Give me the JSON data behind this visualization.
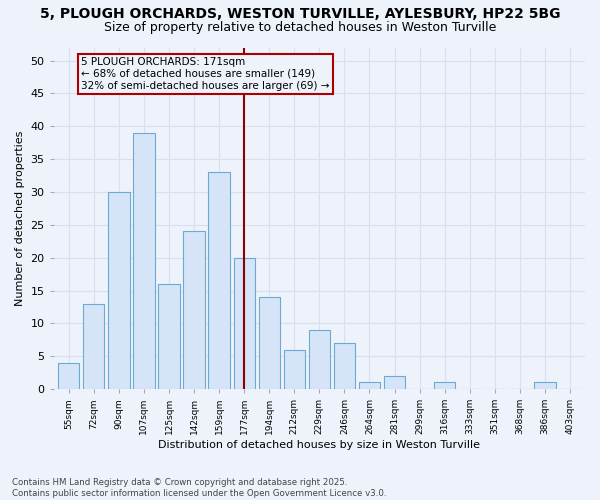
{
  "title1": "5, PLOUGH ORCHARDS, WESTON TURVILLE, AYLESBURY, HP22 5BG",
  "title2": "Size of property relative to detached houses in Weston Turville",
  "xlabel": "Distribution of detached houses by size in Weston Turville",
  "ylabel": "Number of detached properties",
  "categories": [
    "55sqm",
    "72sqm",
    "90sqm",
    "107sqm",
    "125sqm",
    "142sqm",
    "159sqm",
    "177sqm",
    "194sqm",
    "212sqm",
    "229sqm",
    "246sqm",
    "264sqm",
    "281sqm",
    "299sqm",
    "316sqm",
    "333sqm",
    "351sqm",
    "368sqm",
    "386sqm",
    "403sqm"
  ],
  "values": [
    4,
    13,
    30,
    39,
    16,
    24,
    33,
    20,
    14,
    6,
    9,
    7,
    1,
    2,
    0,
    1,
    0,
    0,
    0,
    1,
    0
  ],
  "bar_color": "#d6e4f7",
  "bar_edge_color": "#6aaad4",
  "vline_x_index": 7,
  "vline_color": "#8b0000",
  "annotation_text": "5 PLOUGH ORCHARDS: 171sqm\n← 68% of detached houses are smaller (149)\n32% of semi-detached houses are larger (69) →",
  "box_color": "#aa0000",
  "ylim": [
    0,
    52
  ],
  "yticks": [
    0,
    5,
    10,
    15,
    20,
    25,
    30,
    35,
    40,
    45,
    50
  ],
  "footer1": "Contains HM Land Registry data © Crown copyright and database right 2025.",
  "footer2": "Contains public sector information licensed under the Open Government Licence v3.0.",
  "bg_color": "#eef2fb",
  "grid_color": "#d8dff0",
  "title1_fontsize": 10,
  "title2_fontsize": 9
}
